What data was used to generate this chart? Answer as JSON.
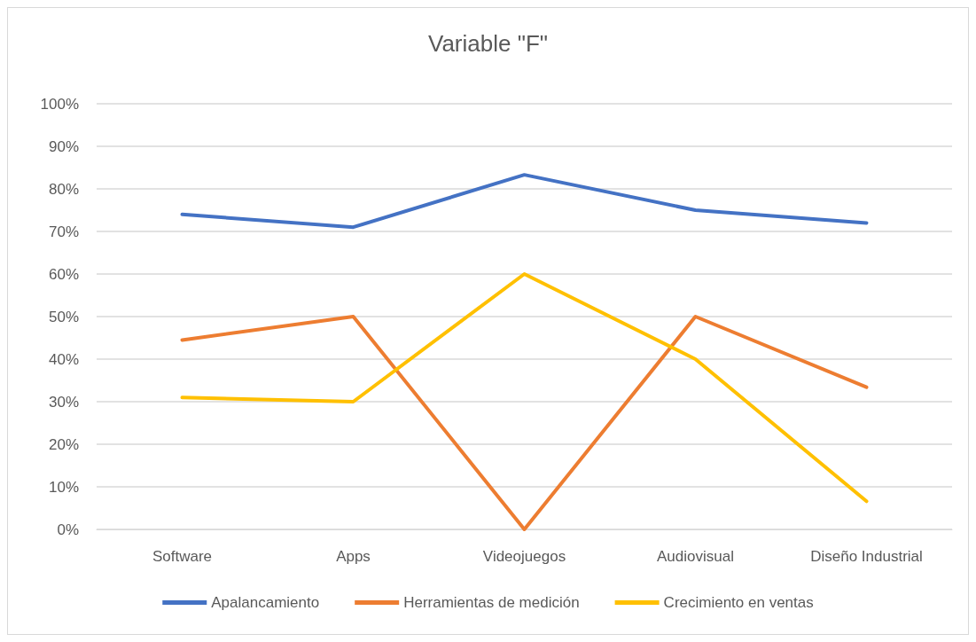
{
  "chart_data": {
    "type": "line",
    "title": "Variable \"F\"",
    "categories": [
      "Software",
      "Apps",
      "Videojuegos",
      "Audiovisual",
      "Diseño Industrial"
    ],
    "series": [
      {
        "name": "Apalancamiento",
        "color": "#4472c4",
        "values": [
          74,
          71,
          83.3,
          75,
          72
        ]
      },
      {
        "name": "Herramientas de medición",
        "color": "#ed7d31",
        "values": [
          44.5,
          50,
          0,
          50,
          33.4
        ]
      },
      {
        "name": "Crecimiento en ventas",
        "color": "#ffc000",
        "values": [
          31,
          30,
          60,
          40,
          6.6
        ]
      }
    ],
    "ylim": [
      0,
      100
    ],
    "yticks": [
      {
        "value": 0,
        "label": "0%"
      },
      {
        "value": 10,
        "label": "10%"
      },
      {
        "value": 20,
        "label": "20%"
      },
      {
        "value": 30,
        "label": "30%"
      },
      {
        "value": 40,
        "label": "40%"
      },
      {
        "value": 50,
        "label": "50%"
      },
      {
        "value": 60,
        "label": "60%"
      },
      {
        "value": 70,
        "label": "70%"
      },
      {
        "value": 80,
        "label": "80%"
      },
      {
        "value": 90,
        "label": "90%"
      },
      {
        "value": 100,
        "label": "100%"
      }
    ],
    "grid": "y",
    "legend": "bottom",
    "marker": "none",
    "line_style": "solid"
  }
}
